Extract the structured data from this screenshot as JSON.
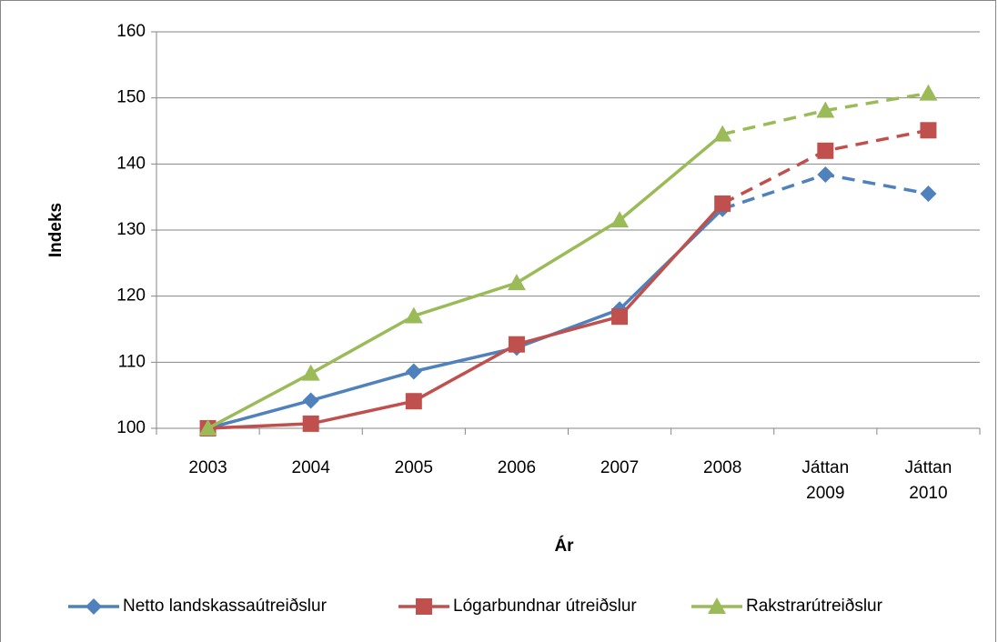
{
  "chart_data": {
    "type": "line",
    "x_label": "Ár",
    "y_label": "Indeks",
    "categories": [
      "2003",
      "2004",
      "2005",
      "2006",
      "2007",
      "2008",
      "Játtan 2009",
      "Játtan 2010"
    ],
    "series": [
      {
        "name": "Netto landskassaútreiðslur",
        "color": "#4f81bd",
        "marker": "diamond",
        "values": [
          100,
          104.2,
          108.6,
          112.2,
          118,
          133.2,
          138.4,
          135.5
        ]
      },
      {
        "name": "Lógarbundnar útreiðslur",
        "color": "#c0504d",
        "marker": "square",
        "values": [
          100,
          100.7,
          104.1,
          112.7,
          116.9,
          134,
          142,
          145.1
        ]
      },
      {
        "name": "Rakstrarútreiðslur",
        "color": "#9bbb59",
        "marker": "triangle",
        "values": [
          100,
          108.3,
          117,
          122,
          131.5,
          144.5,
          148.1,
          150.7
        ]
      }
    ],
    "forecast_start": 5,
    "ylim": [
      100,
      160
    ],
    "yticks": [
      100,
      110,
      120,
      130,
      140,
      150,
      160
    ],
    "grid": true,
    "legend": "bottom"
  }
}
